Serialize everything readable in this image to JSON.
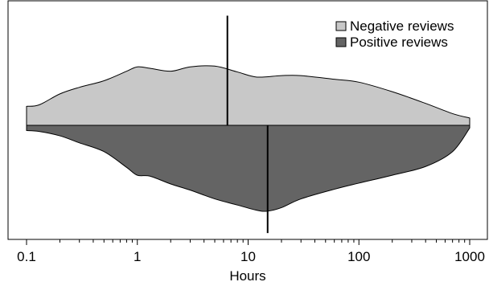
{
  "chart_data": {
    "type": "split-violin",
    "title": "",
    "xlabel": "Hours",
    "ylabel": "",
    "x_scale": "log",
    "xlim": [
      0.1,
      1000
    ],
    "xticks": [
      0.1,
      1,
      10,
      100,
      1000
    ],
    "xtick_labels": [
      "0.1",
      "1",
      "10",
      "100",
      "1000"
    ],
    "legend_position": "top-right",
    "series": [
      {
        "name": "Negative reviews",
        "side": "upper",
        "color": "#c8c8c8",
        "median_hours": 6.5,
        "density_profile": {
          "hours": [
            0.1,
            0.13,
            0.2,
            0.3,
            0.5,
            0.8,
            1.0,
            1.3,
            2.0,
            3.0,
            5.0,
            8.0,
            12,
            20,
            30,
            60,
            100,
            200,
            400,
            700,
            1000
          ],
          "relative_width": [
            0.26,
            0.28,
            0.43,
            0.52,
            0.61,
            0.74,
            0.8,
            0.78,
            0.74,
            0.8,
            0.81,
            0.73,
            0.66,
            0.68,
            0.68,
            0.63,
            0.59,
            0.46,
            0.3,
            0.16,
            0.1
          ]
        }
      },
      {
        "name": "Positive reviews",
        "side": "lower",
        "color": "#646464",
        "median_hours": 15,
        "density_profile": {
          "hours": [
            0.1,
            0.13,
            0.2,
            0.3,
            0.5,
            0.8,
            1.0,
            1.3,
            2.0,
            3.0,
            5.0,
            8.0,
            12,
            15,
            20,
            30,
            60,
            100,
            200,
            400,
            700,
            1000
          ],
          "relative_width": [
            0.06,
            0.07,
            0.12,
            0.2,
            0.3,
            0.48,
            0.57,
            0.58,
            0.67,
            0.74,
            0.84,
            0.91,
            0.97,
            0.98,
            0.94,
            0.84,
            0.73,
            0.66,
            0.57,
            0.47,
            0.3,
            0.03
          ]
        }
      }
    ]
  }
}
